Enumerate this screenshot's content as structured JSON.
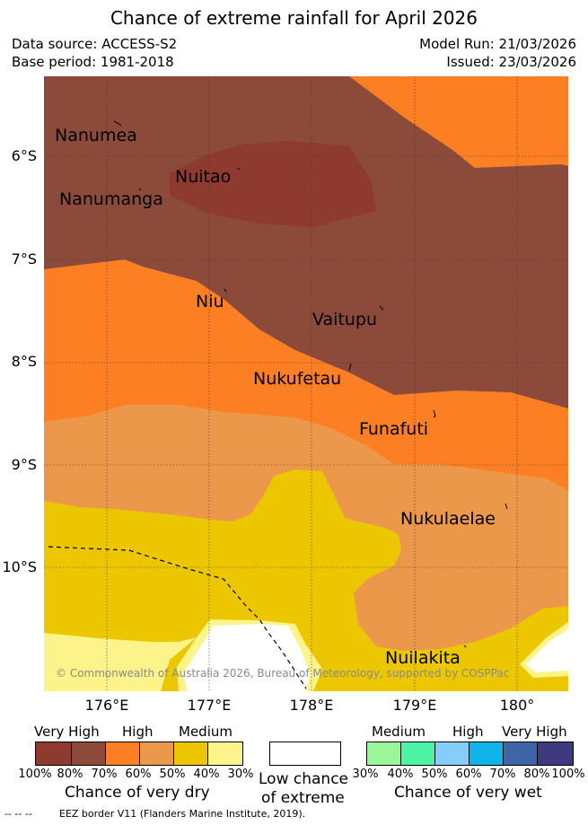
{
  "title": "Chance of extreme rainfall for April 2026",
  "header": {
    "data_source": "Data source: ACCESS-S2",
    "base_period": "Base period: 1981-2018",
    "model_run": "Model Run: 21/03/2026",
    "issued": "Issued: 23/03/2026"
  },
  "map": {
    "latitudes": [
      "6°S",
      "7°S",
      "8°S",
      "9°S",
      "10°S"
    ],
    "longitudes": [
      "176°E",
      "177°E",
      "178°E",
      "179°E",
      "180°"
    ],
    "places": [
      "Nanumea",
      "Nuitao",
      "Nanumanga",
      "Niu",
      "Vaitupu",
      "Nukufetau",
      "Funafuti",
      "Nukulaelae",
      "Nuilakita"
    ],
    "copyright": "© Commonwealth of Australia 2026, Bureau of Meteorology, supported by COSPPac",
    "colors": {
      "very_high_dry_dark": "#8e3a2f",
      "very_high_dry": "#8b4a3a",
      "high_dry": "#fc7f24",
      "medium_high_dry": "#eb984b",
      "medium_dry": "#ecc700",
      "low_dry": "#fcf38a",
      "low_chance": "#ffffff"
    }
  },
  "legend": {
    "dry": {
      "categories": [
        "Very High",
        "High",
        "Medium"
      ],
      "percentages": [
        "100%",
        "80%",
        "70%",
        "60%",
        "50%",
        "40%",
        "30%"
      ],
      "colors": [
        "#8e3a2f",
        "#8b4a3a",
        "#fc7f24",
        "#eb984b",
        "#ecc700",
        "#fcf38a"
      ],
      "caption": "Chance of very dry"
    },
    "neutral": {
      "caption_line1": "Low chance",
      "caption_line2": "of extreme"
    },
    "wet": {
      "categories": [
        "Medium",
        "High",
        "Very High"
      ],
      "percentages": [
        "30%",
        "40%",
        "50%",
        "60%",
        "70%",
        "80%",
        "100%"
      ],
      "colors": [
        "#99f79a",
        "#4cf5a3",
        "#86ccfc",
        "#10b3ea",
        "#3d65a7",
        "#3f3a80"
      ],
      "caption": "Chance of very wet"
    }
  },
  "footer": {
    "eez_symbol": "-- --  --",
    "eez_text": "EEZ border V11 (Flanders Marine Institute, 2019)."
  }
}
